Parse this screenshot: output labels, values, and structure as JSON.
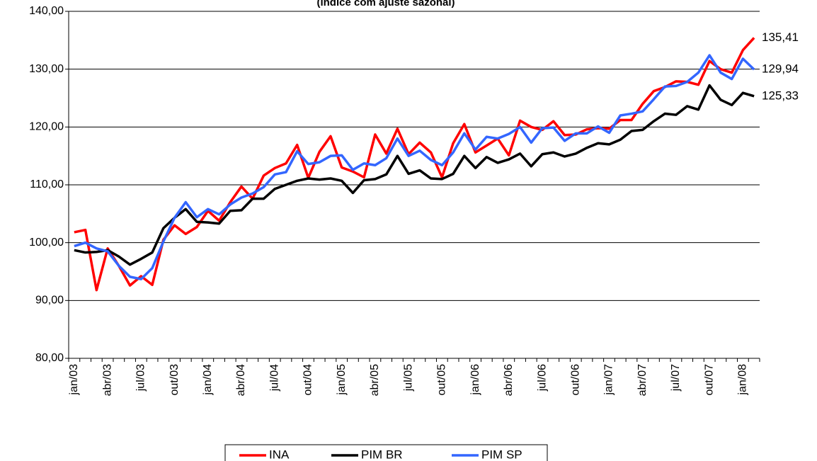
{
  "chart_data": {
    "type": "line",
    "subtitle": "(índice com ajuste sazonal)",
    "categories": [
      "jan/03",
      null,
      null,
      "abr/03",
      null,
      null,
      "jul/03",
      null,
      null,
      "out/03",
      null,
      null,
      "jan/04",
      null,
      null,
      "abr/04",
      null,
      null,
      "jul/04",
      null,
      null,
      "out/04",
      null,
      null,
      "jan/05",
      null,
      null,
      "abr/05",
      null,
      null,
      "jul/05",
      null,
      null,
      "out/05",
      null,
      null,
      "jan/06",
      null,
      null,
      "abr/06",
      null,
      null,
      "jul/06",
      null,
      null,
      "out/06",
      null,
      null,
      "jan/07",
      null,
      null,
      "abr/07",
      null,
      null,
      "jul/07",
      null,
      null,
      "out/07",
      null,
      null,
      "jan/08",
      null
    ],
    "series": [
      {
        "name": "INA",
        "color": "#ff0000",
        "values": [
          101.8,
          102.2,
          91.8,
          99.0,
          96.0,
          92.6,
          94.2,
          92.7,
          100.5,
          103.0,
          101.5,
          102.7,
          105.5,
          103.8,
          107.0,
          109.7,
          107.6,
          111.6,
          112.9,
          113.7,
          116.9,
          111.2,
          115.7,
          118.4,
          113.0,
          112.3,
          111.3,
          118.7,
          115.4,
          119.7,
          115.3,
          117.3,
          115.6,
          111.3,
          117.2,
          120.5,
          115.6,
          116.8,
          118.0,
          115.1,
          121.1,
          120.0,
          119.5,
          121.0,
          118.6,
          118.7,
          119.6,
          119.8,
          119.7,
          121.2,
          121.2,
          124.0,
          126.2,
          126.9,
          127.9,
          127.8,
          127.3,
          131.4,
          130.0,
          129.4,
          133.3,
          135.41
        ],
        "value_labels": [
          null,
          null,
          null,
          null,
          null,
          null,
          null,
          null,
          null,
          null,
          null,
          null,
          null,
          null,
          null,
          null,
          null,
          null,
          null,
          null,
          null,
          null,
          null,
          null,
          null,
          null,
          null,
          null,
          null,
          null,
          null,
          null,
          null,
          null,
          null,
          null,
          null,
          null,
          null,
          null,
          null,
          null,
          null,
          null,
          null,
          null,
          null,
          null,
          null,
          null,
          null,
          null,
          null,
          null,
          null,
          null,
          null,
          null,
          null,
          null,
          null,
          "135,41"
        ]
      },
      {
        "name": "PIM BR",
        "color": "#000000",
        "values": [
          98.7,
          98.3,
          98.4,
          98.7,
          97.6,
          96.2,
          97.2,
          98.3,
          102.5,
          104.3,
          105.8,
          103.6,
          103.5,
          103.3,
          105.5,
          105.6,
          107.6,
          107.6,
          109.3,
          110.0,
          110.7,
          111.1,
          110.9,
          111.1,
          110.7,
          108.6,
          110.8,
          111.0,
          111.8,
          115.0,
          111.9,
          112.5,
          111.1,
          111.0,
          111.9,
          115.0,
          112.9,
          114.8,
          113.8,
          114.4,
          115.4,
          113.2,
          115.3,
          115.6,
          114.9,
          115.4,
          116.4,
          117.2,
          117.0,
          117.8,
          119.3,
          119.5,
          121.0,
          122.3,
          122.1,
          123.6,
          123.0,
          127.2,
          124.7,
          123.8,
          125.9,
          125.33
        ],
        "value_labels": [
          null,
          null,
          null,
          null,
          null,
          null,
          null,
          null,
          null,
          null,
          null,
          null,
          null,
          null,
          null,
          null,
          null,
          null,
          null,
          null,
          null,
          null,
          null,
          null,
          null,
          null,
          null,
          null,
          null,
          null,
          null,
          null,
          null,
          null,
          null,
          null,
          null,
          null,
          null,
          null,
          null,
          null,
          null,
          null,
          null,
          null,
          null,
          null,
          null,
          null,
          null,
          null,
          null,
          null,
          null,
          null,
          null,
          null,
          null,
          null,
          null,
          "125,33"
        ]
      },
      {
        "name": "PIM SP",
        "color": "#3366ff",
        "values": [
          99.4,
          100.0,
          99.0,
          98.5,
          96.0,
          94.1,
          93.7,
          95.6,
          100.2,
          104.3,
          107.0,
          104.4,
          105.8,
          104.9,
          106.6,
          107.8,
          108.5,
          109.6,
          111.8,
          112.2,
          115.8,
          113.6,
          113.9,
          115.0,
          115.1,
          112.6,
          113.7,
          113.4,
          114.6,
          118.0,
          115.0,
          115.9,
          114.3,
          113.4,
          115.6,
          118.9,
          116.1,
          118.3,
          118.0,
          118.8,
          120.0,
          117.3,
          119.8,
          119.9,
          117.6,
          118.9,
          118.9,
          120.1,
          119.0,
          122.0,
          122.3,
          122.7,
          124.8,
          127.0,
          127.1,
          127.8,
          129.4,
          132.4,
          129.4,
          128.3,
          131.8,
          129.94
        ],
        "value_labels": [
          null,
          null,
          null,
          null,
          null,
          null,
          null,
          null,
          null,
          null,
          null,
          null,
          null,
          null,
          null,
          null,
          null,
          null,
          null,
          null,
          null,
          null,
          null,
          null,
          null,
          null,
          null,
          null,
          null,
          null,
          null,
          null,
          null,
          null,
          null,
          null,
          null,
          null,
          null,
          null,
          null,
          null,
          null,
          null,
          null,
          null,
          null,
          null,
          null,
          null,
          null,
          null,
          null,
          null,
          null,
          null,
          null,
          null,
          null,
          null,
          null,
          "129,94"
        ]
      }
    ],
    "ylim": [
      80,
      140
    ],
    "yticks": [
      {
        "value": 80,
        "label": "80,00"
      },
      {
        "value": 90,
        "label": "90,00"
      },
      {
        "value": 100,
        "label": "100,00"
      },
      {
        "value": 110,
        "label": "110,00"
      },
      {
        "value": 120,
        "label": "120,00"
      },
      {
        "value": 130,
        "label": "130,00"
      },
      {
        "value": 140,
        "label": "140,00"
      }
    ],
    "grid": true,
    "legend": "bottom"
  }
}
